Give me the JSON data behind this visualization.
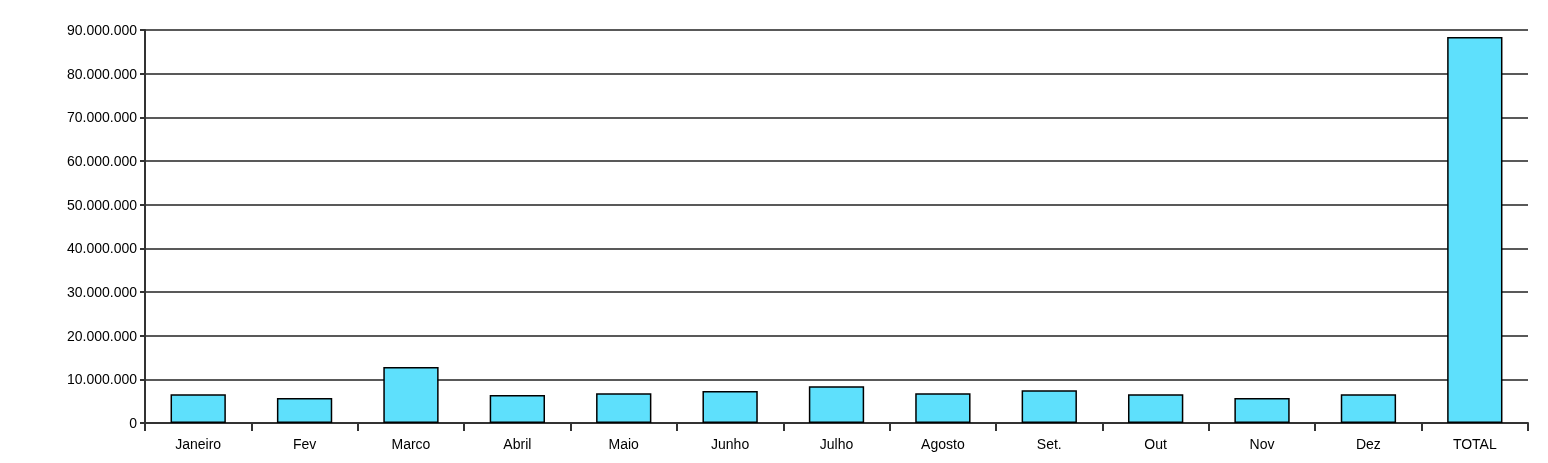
{
  "chart_data": {
    "type": "bar",
    "categories": [
      "Janeiro",
      "Fev",
      "Marco",
      "Abril",
      "Maio",
      "Junho",
      "Julho",
      "Agosto",
      "Set.",
      "Out",
      "Nov",
      "Dez",
      "TOTAL"
    ],
    "values": [
      6600000,
      5700000,
      12800000,
      6400000,
      6800000,
      7300000,
      8400000,
      6800000,
      7500000,
      6600000,
      5700000,
      6600000,
      88400000
    ],
    "color": "#5ee0fc",
    "ylim": [
      0,
      90000000
    ],
    "yticks": [
      {
        "value": 0,
        "label": "0"
      },
      {
        "value": 10000000,
        "label": "10.000.000"
      },
      {
        "value": 20000000,
        "label": "20.000.000"
      },
      {
        "value": 30000000,
        "label": "30.000.000"
      },
      {
        "value": 40000000,
        "label": "40.000.000"
      },
      {
        "value": 50000000,
        "label": "50.000.000"
      },
      {
        "value": 60000000,
        "label": "60.000.000"
      },
      {
        "value": 70000000,
        "label": "70.000.000"
      },
      {
        "value": 80000000,
        "label": "80.000.000"
      },
      {
        "value": 90000000,
        "label": "90.000.000"
      }
    ],
    "grid": "y"
  }
}
